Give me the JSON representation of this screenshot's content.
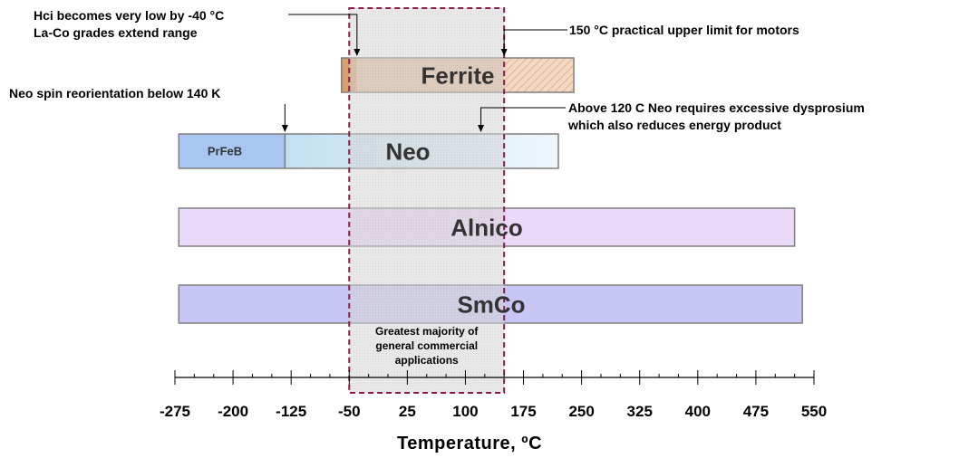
{
  "chart_data": {
    "type": "range-bar",
    "title": "",
    "xlabel": "Temperature, ºC",
    "ylabel": "",
    "xlim": [
      -290,
      555
    ],
    "major_ticks": [
      -275,
      -200,
      -125,
      -50,
      25,
      100,
      175,
      250,
      325,
      400,
      475,
      550
    ],
    "tick_labels": [
      "-275",
      "-200",
      "-125",
      "-50",
      "25",
      "100",
      "175",
      "250",
      "325",
      "400",
      "475",
      "550"
    ],
    "minor_tick_step": 25,
    "grid": false,
    "bars": [
      {
        "name": "Ferrite",
        "label": "Ferrite",
        "start": -60,
        "end": 240,
        "segments": [
          {
            "start": -60,
            "end": -40,
            "fill": "#d9a06e"
          },
          {
            "start": -40,
            "end": 150,
            "fill": "#e8c3a2"
          },
          {
            "start": 150,
            "end": 240,
            "fill": "#f3d9c3",
            "hatched": true
          }
        ]
      },
      {
        "name": "Neo",
        "label": "Neo",
        "start": -133,
        "end": 220,
        "segments": [
          {
            "start": -133,
            "end": 220,
            "fill": "#c2e0f0",
            "gradient_to": "#eef7fc"
          }
        ]
      },
      {
        "name": "PrFeB",
        "label": "PrFeB",
        "start": -270,
        "end": -133,
        "segments": [
          {
            "start": -270,
            "end": -133,
            "fill": "#a9c6f2"
          }
        ]
      },
      {
        "name": "Alnico",
        "label": "Alnico",
        "start": -270,
        "end": 525,
        "segments": [
          {
            "start": -270,
            "end": 525,
            "fill": "#ead9f8"
          }
        ]
      },
      {
        "name": "SmCo",
        "label": "SmCo",
        "start": -270,
        "end": 535,
        "segments": [
          {
            "start": -270,
            "end": 535,
            "fill": "#c8c6f4"
          }
        ]
      }
    ],
    "highlight_band": {
      "start": -50,
      "end": 150,
      "label_lines": [
        "Greatest majority of",
        "general commercial",
        "applications"
      ]
    },
    "annotations": [
      {
        "lines": [
          "Hci becomes very low by -40 °C",
          "La-Co grades extend range"
        ],
        "x": -40
      },
      {
        "lines": [
          "150 °C practical upper limit for motors"
        ],
        "x": 150
      },
      {
        "lines": [
          "Neo spin reorientation below 140 K"
        ],
        "x": -133
      },
      {
        "lines": [
          "Above 120 C Neo requires excessive dysprosium",
          "which also reduces energy product"
        ],
        "x": 120
      }
    ],
    "colors": {
      "band_outline": "#8b1a4a",
      "band_fill": "#d0d0d0",
      "bar_outline": "#7f7f7f"
    }
  }
}
